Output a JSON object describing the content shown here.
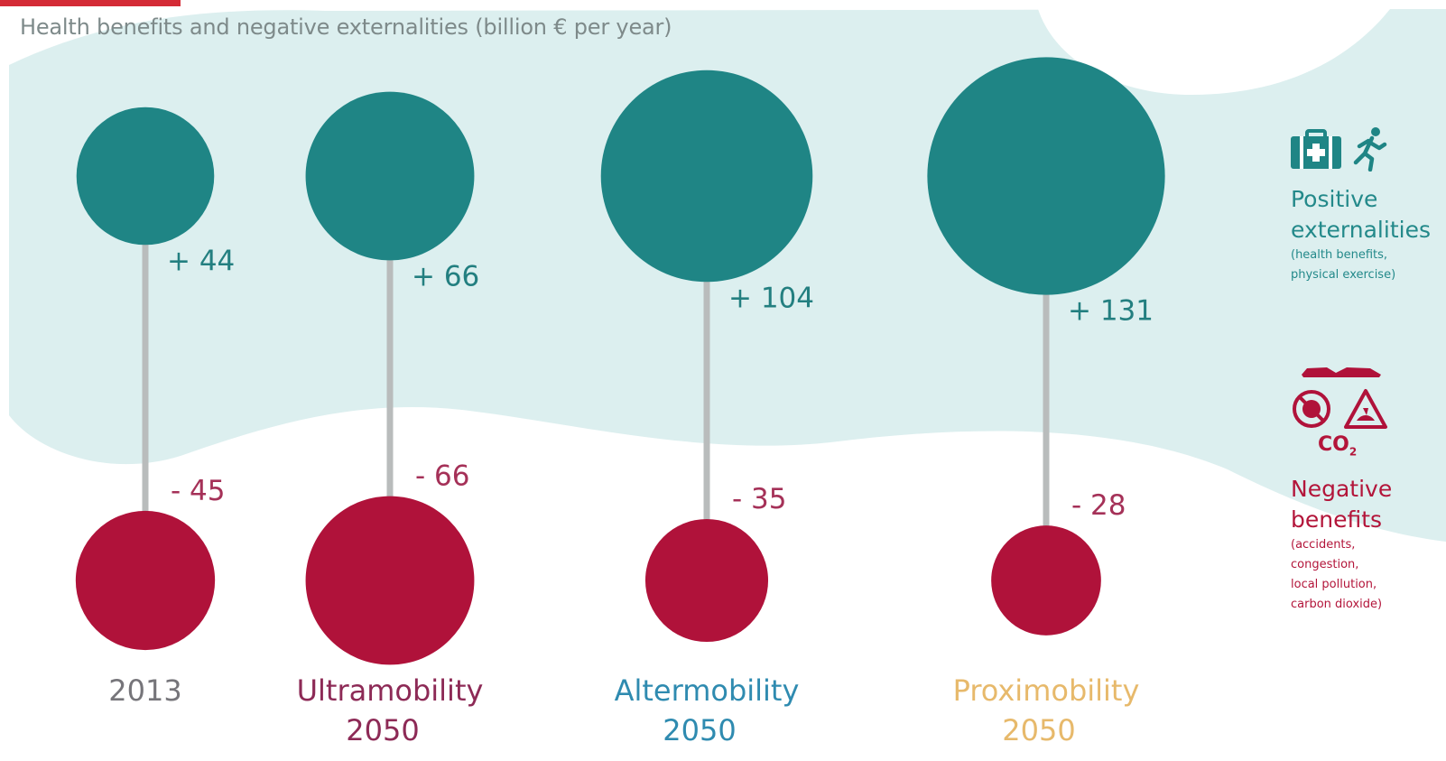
{
  "title": "Health benefits and negative externalities (billion € per year)",
  "chart_data": {
    "type": "bubble",
    "categories": [
      {
        "label": "2013",
        "sub": "",
        "color": "#76757a"
      },
      {
        "label": "Ultramobility",
        "sub": "2050",
        "color": "#8d2a56"
      },
      {
        "label": "Altermobility",
        "sub": "2050",
        "color": "#2f8bb0"
      },
      {
        "label": "Proximobility",
        "sub": "2050",
        "color": "#e7b96b"
      }
    ],
    "series": [
      {
        "name": "Positive externalities",
        "values": [
          44,
          66,
          104,
          131
        ],
        "labels": [
          "+ 44",
          "+ 66",
          "+ 104",
          "+ 131"
        ],
        "color": "#1f8585"
      },
      {
        "name": "Negative benefits",
        "values": [
          45,
          66,
          35,
          28
        ],
        "labels": [
          "- 45",
          "- 66",
          "- 35",
          "- 28"
        ],
        "color": "#b0123a"
      }
    ]
  },
  "legend": {
    "positive": {
      "icons": [
        "first-aid-kit-icon",
        "running-person-icon"
      ],
      "title_line1": "Positive",
      "title_line2": "externalities",
      "note_line1": "(health benefits,",
      "note_line2": "physical exercise)"
    },
    "negative": {
      "icons": [
        "car-crash-icon",
        "no-entry-icon",
        "warning-triangle-icon"
      ],
      "co2": "CO",
      "co2_sub": "2",
      "title_line1": "Negative",
      "title_line2": "benefits",
      "note_line1": "(accidents,",
      "note_line2": "congestion,",
      "note_line3": "local pollution,",
      "note_line4": "carbon dioxide)"
    }
  },
  "colors": {
    "background_band": "#dcefef",
    "connector": "#b9bcbc",
    "positive_label": "#237f80",
    "negative_label": "#a53158"
  }
}
